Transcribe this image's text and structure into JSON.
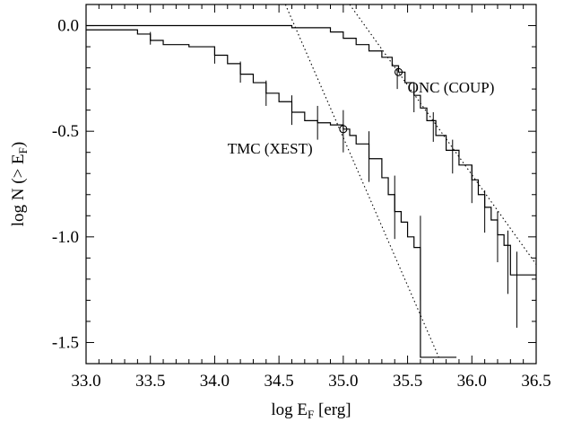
{
  "chart_data": {
    "type": "line",
    "xlabel": {
      "main": "log E",
      "sub": "F",
      "tail": " [erg]"
    },
    "ylabel": {
      "main": "log N (> E",
      "sub": "F",
      "tail": ")"
    },
    "xlim": [
      33.0,
      36.5
    ],
    "ylim": [
      -1.6,
      0.1
    ],
    "grid": false,
    "x_ticks": [
      33.0,
      33.5,
      34.0,
      34.5,
      35.0,
      35.5,
      36.0,
      36.5
    ],
    "x_tick_labels": [
      "33.0",
      "33.5",
      "34.0",
      "34.5",
      "35.0",
      "35.5",
      "36.0",
      "36.5"
    ],
    "y_ticks": [
      0.0,
      -0.5,
      -1.0,
      -1.5
    ],
    "y_tick_labels": [
      "0.0",
      "-0.5",
      "-1.0",
      "-1.5"
    ],
    "annotations": [
      {
        "text": "ONC (COUP)",
        "x": 35.5,
        "y": -0.29
      },
      {
        "text": "TMC (XEST)",
        "x": 34.1,
        "y": -0.58
      }
    ],
    "series": [
      {
        "name": "ONC (COUP)",
        "style": "step",
        "x": [
          33.0,
          34.6,
          34.9,
          35.0,
          35.1,
          35.2,
          35.3,
          35.38,
          35.43,
          35.48,
          35.55,
          35.6,
          35.65,
          35.72,
          35.8,
          35.9,
          36.0,
          36.05,
          36.1,
          36.15,
          36.2,
          36.25,
          36.3,
          36.5
        ],
        "y": [
          0.0,
          -0.01,
          -0.03,
          -0.06,
          -0.09,
          -0.12,
          -0.15,
          -0.19,
          -0.22,
          -0.27,
          -0.33,
          -0.39,
          -0.45,
          -0.52,
          -0.59,
          -0.66,
          -0.73,
          -0.8,
          -0.86,
          -0.92,
          -0.99,
          -1.04,
          -1.18,
          -1.18
        ]
      },
      {
        "name": "TMC (XEST)",
        "style": "step",
        "x": [
          33.0,
          33.4,
          33.5,
          33.6,
          33.8,
          34.0,
          34.1,
          34.2,
          34.3,
          34.4,
          34.5,
          34.6,
          34.7,
          34.8,
          34.9,
          35.0,
          35.05,
          35.1,
          35.2,
          35.3,
          35.35,
          35.4,
          35.45,
          35.5,
          35.55,
          35.6,
          35.65,
          35.88
        ],
        "y": [
          -0.02,
          -0.04,
          -0.07,
          -0.09,
          -0.1,
          -0.14,
          -0.18,
          -0.23,
          -0.27,
          -0.32,
          -0.36,
          -0.41,
          -0.45,
          -0.46,
          -0.47,
          -0.49,
          -0.52,
          -0.56,
          -0.63,
          -0.72,
          -0.8,
          -0.88,
          -0.93,
          -1.0,
          -1.05,
          -1.57,
          -1.57,
          -1.57
        ]
      }
    ],
    "error_bars": [
      {
        "series": "ONC (COUP)",
        "x": [
          35.42,
          35.55,
          35.7,
          35.85,
          36.0,
          36.1,
          36.2,
          36.28,
          36.35
        ],
        "y": [
          -0.25,
          -0.35,
          -0.48,
          -0.62,
          -0.75,
          -0.88,
          -1.0,
          -1.12,
          -1.25
        ],
        "err": [
          0.05,
          0.06,
          0.07,
          0.08,
          0.09,
          0.1,
          0.12,
          0.15,
          0.18
        ]
      },
      {
        "series": "TMC (XEST)",
        "x": [
          33.5,
          34.0,
          34.2,
          34.4,
          34.6,
          34.8,
          35.0,
          35.2,
          35.4,
          35.6
        ],
        "y": [
          -0.06,
          -0.14,
          -0.22,
          -0.32,
          -0.4,
          -0.46,
          -0.5,
          -0.62,
          -0.86,
          -1.1
        ],
        "err": [
          0.03,
          0.04,
          0.05,
          0.06,
          0.07,
          0.08,
          0.1,
          0.12,
          0.15,
          0.2
        ]
      }
    ],
    "fit_lines": [
      {
        "name": "ONC fit",
        "x": [
          35.05,
          36.5
        ],
        "y": [
          0.1,
          -1.13
        ]
      },
      {
        "name": "TMC fit",
        "x": [
          34.55,
          35.75
        ],
        "y": [
          0.1,
          -1.58
        ]
      }
    ],
    "markers": [
      {
        "series": "ONC (COUP)",
        "x": 35.43,
        "y": -0.22
      },
      {
        "series": "TMC (XEST)",
        "x": 35.0,
        "y": -0.49
      }
    ]
  }
}
